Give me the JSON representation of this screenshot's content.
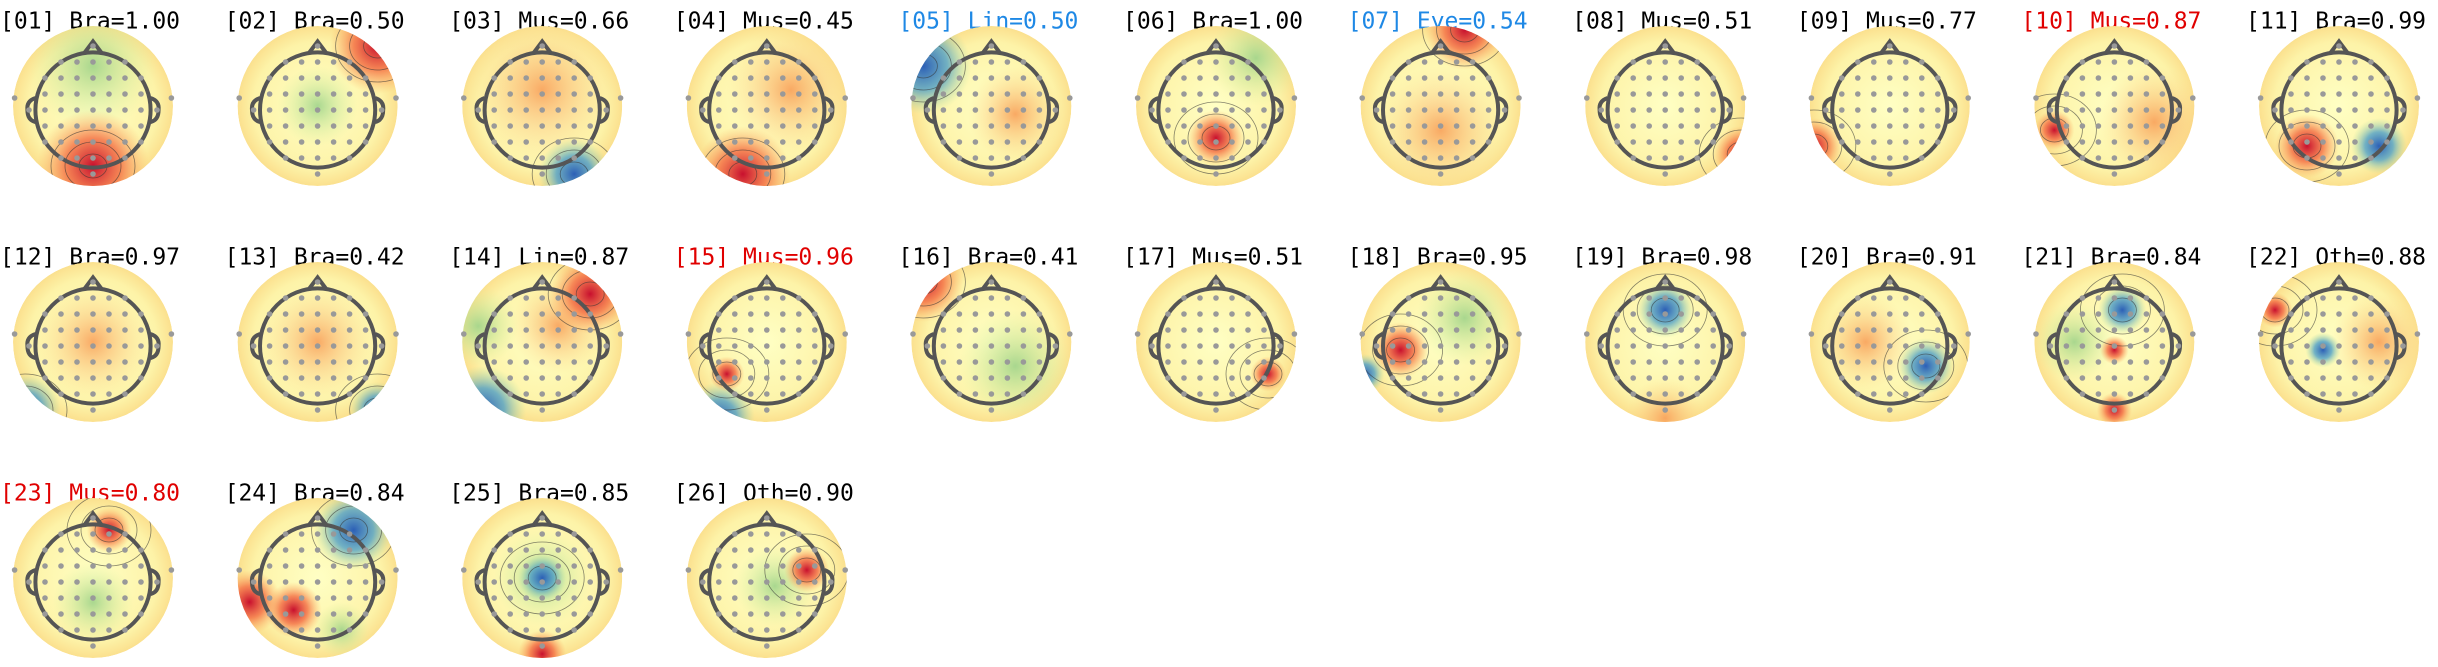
{
  "components": [
    {
      "label": "[01] Bra=1.00",
      "color": "#000000"
    },
    {
      "label": "[02] Bra=0.50",
      "color": "#000000"
    },
    {
      "label": "[03] Mus=0.66",
      "color": "#000000"
    },
    {
      "label": "[04] Mus=0.45",
      "color": "#000000"
    },
    {
      "label": "[05] Lin=0.50",
      "color": "#1e88e5"
    },
    {
      "label": "[06] Bra=1.00",
      "color": "#000000"
    },
    {
      "label": "[07] Eye=0.54",
      "color": "#1e88e5"
    },
    {
      "label": "[08] Mus=0.51",
      "color": "#000000"
    },
    {
      "label": "[09] Mus=0.77",
      "color": "#000000"
    },
    {
      "label": "[10] Mus=0.87",
      "color": "#e00000"
    },
    {
      "label": "[11] Bra=0.99",
      "color": "#000000"
    },
    {
      "label": "[12] Bra=0.97",
      "color": "#000000"
    },
    {
      "label": "[13] Bra=0.42",
      "color": "#000000"
    },
    {
      "label": "[14] Lin=0.87",
      "color": "#000000"
    },
    {
      "label": "[15] Mus=0.96",
      "color": "#e00000"
    },
    {
      "label": "[16] Bra=0.41",
      "color": "#000000"
    },
    {
      "label": "[17] Mus=0.51",
      "color": "#000000"
    },
    {
      "label": "[18] Bra=0.95",
      "color": "#000000"
    },
    {
      "label": "[19] Bra=0.98",
      "color": "#000000"
    },
    {
      "label": "[20] Bra=0.91",
      "color": "#000000"
    },
    {
      "label": "[21] Bra=0.84",
      "color": "#000000"
    },
    {
      "label": "[22] Oth=0.88",
      "color": "#000000"
    },
    {
      "label": "[23] Mus=0.80",
      "color": "#e00000"
    },
    {
      "label": "[24] Bra=0.84",
      "color": "#000000"
    },
    {
      "label": "[25] Bra=0.85",
      "color": "#000000"
    },
    {
      "label": "[26] Oth=0.90",
      "color": "#000000"
    }
  ]
}
